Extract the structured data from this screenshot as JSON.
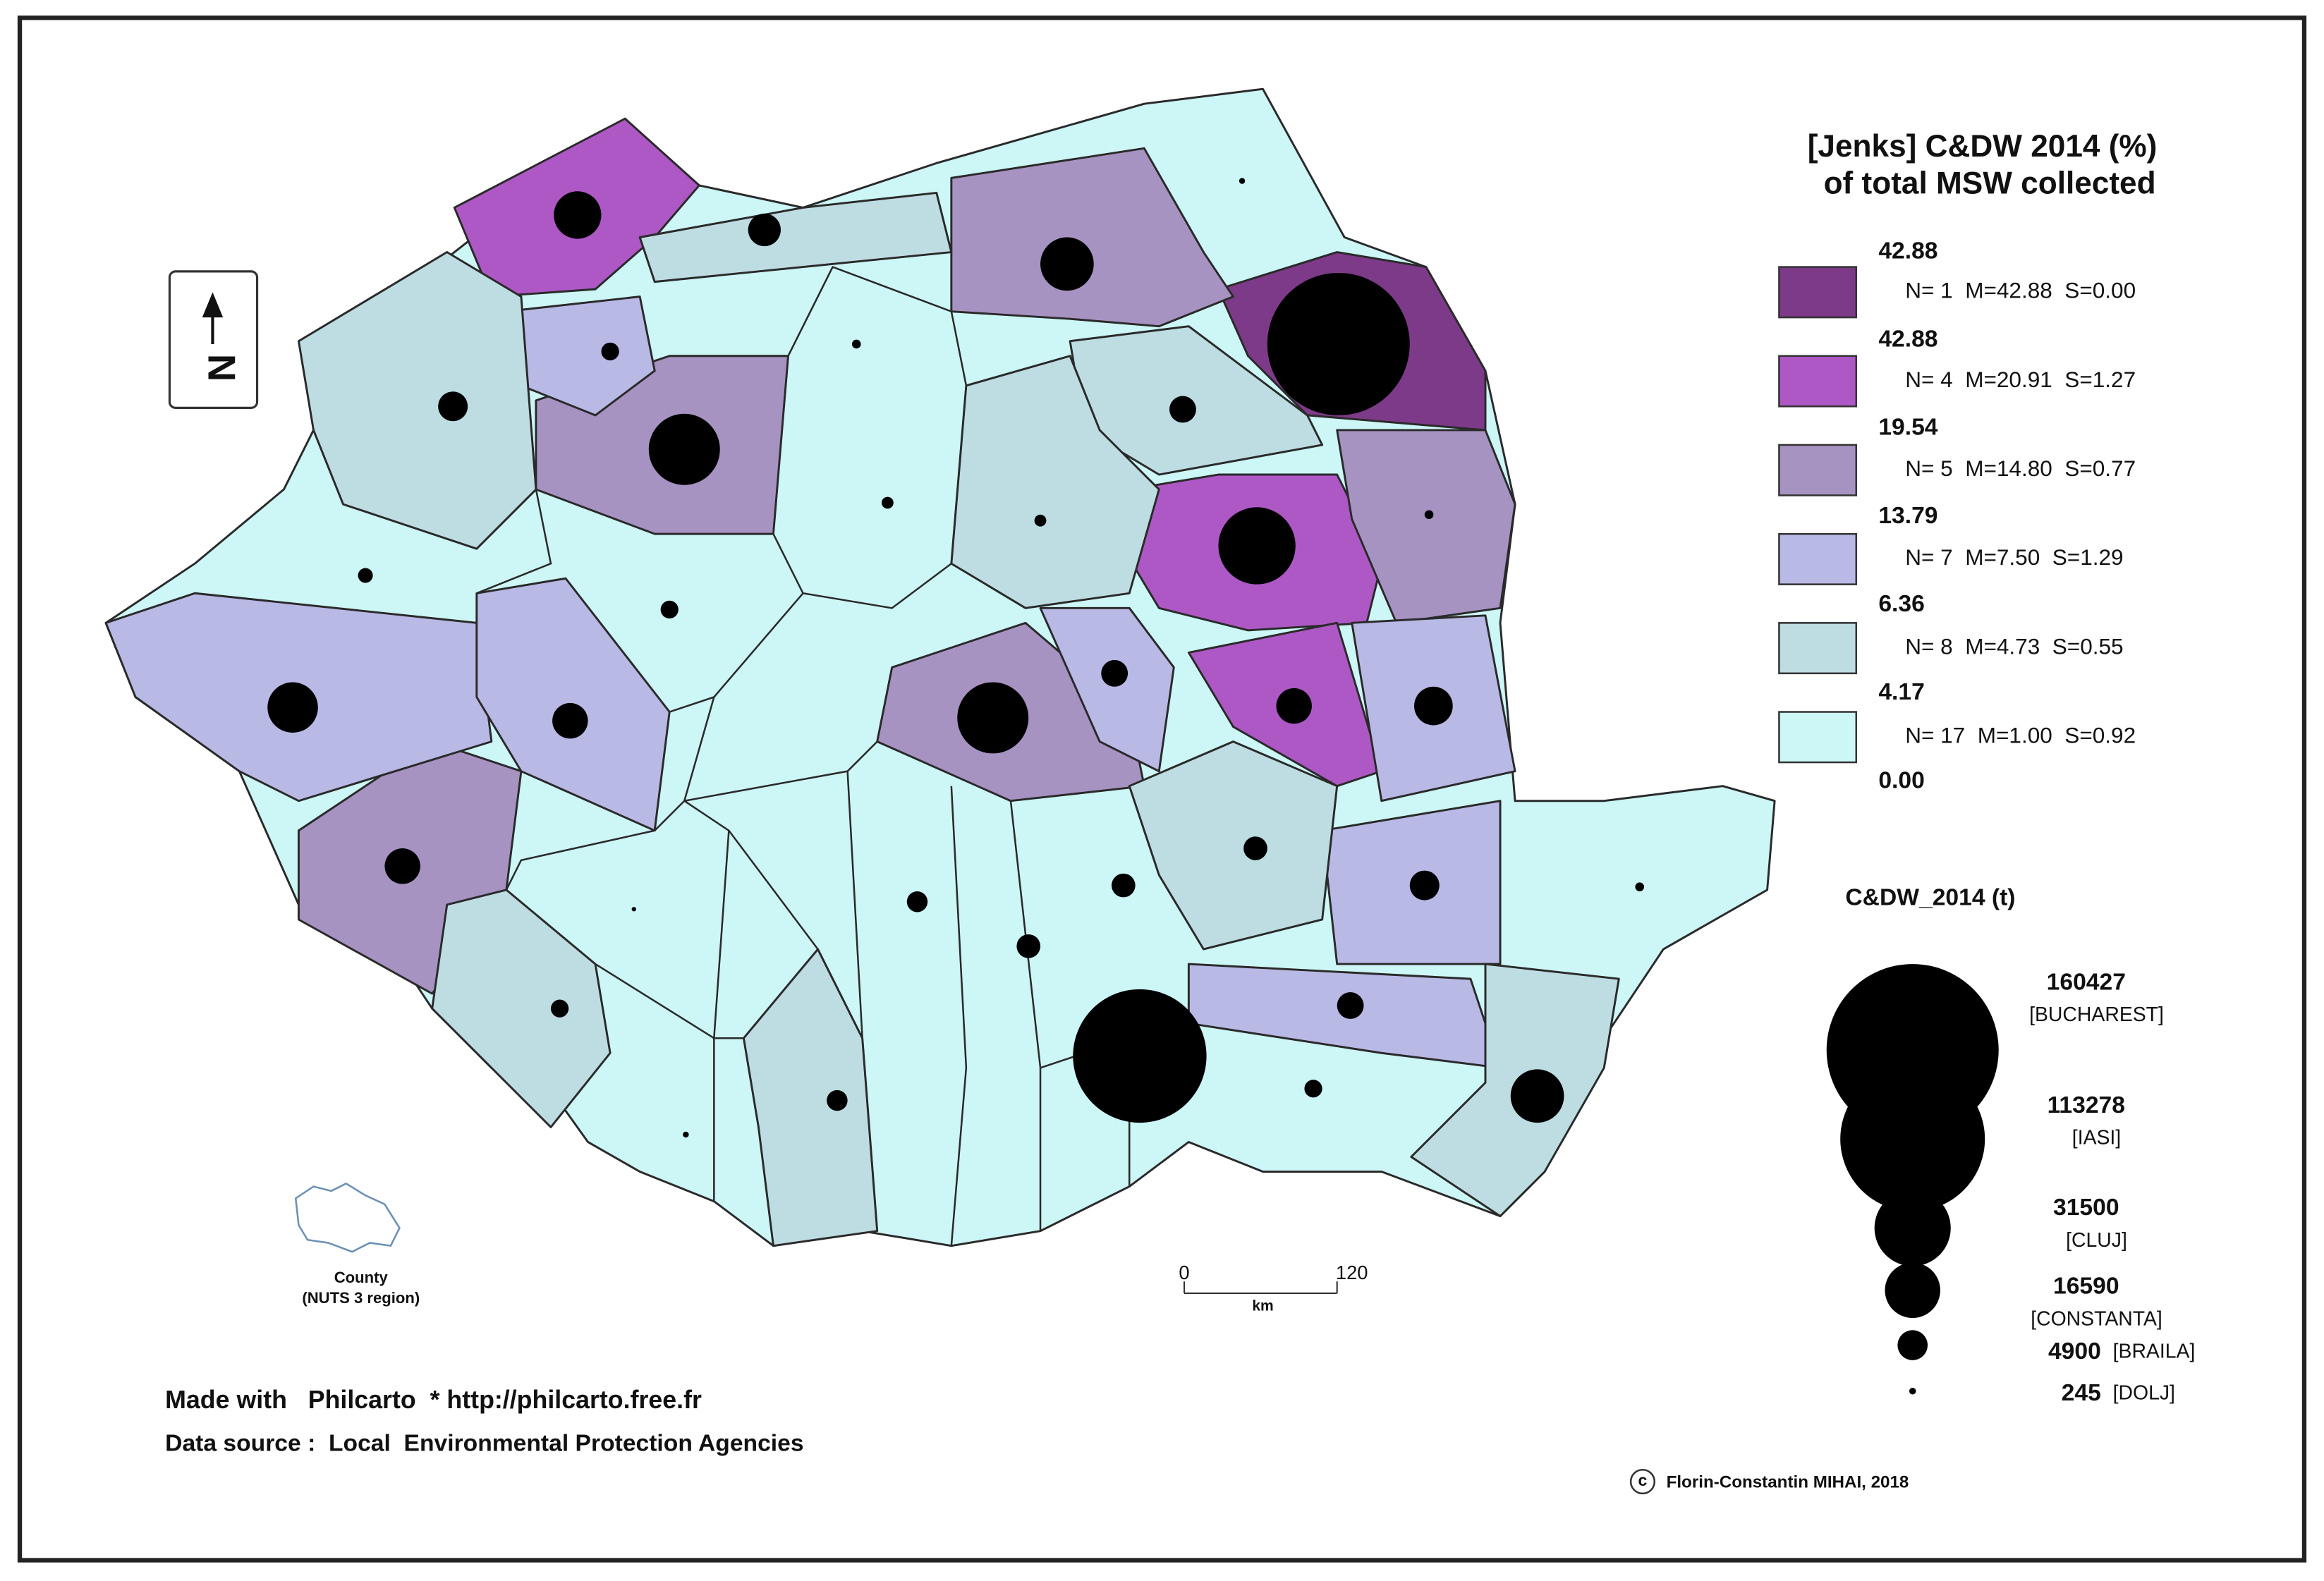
{
  "title_lines": [
    "[Jenks] C&DW 2014 (%)",
    "of total MSW collected"
  ],
  "legend": {
    "breaks": [
      "42.88",
      "42.88",
      "19.54",
      "13.79",
      "6.36",
      "4.17",
      "0.00"
    ],
    "classes": [
      {
        "color": "#7d3a88",
        "stats": "N= 1  M=42.88  S=0.00"
      },
      {
        "color": "#ae58c6",
        "stats": "N= 4  M=20.91  S=1.27"
      },
      {
        "color": "#a793c2",
        "stats": "N= 5  M=14.80  S=0.77"
      },
      {
        "color": "#b9b9e6",
        "stats": "N= 7  M=7.50  S=1.29"
      },
      {
        "color": "#bedde3",
        "stats": "N= 8  M=4.73  S=0.55"
      },
      {
        "color": "#cdf6f6",
        "stats": "N= 17  M=1.00  S=0.92"
      }
    ]
  },
  "size_legend": {
    "title": "C&DW_2014 (t)",
    "items": [
      {
        "value": 160427,
        "label": "[BUCHAREST]"
      },
      {
        "value": 113278,
        "label": "[IASI]"
      },
      {
        "value": 31500,
        "label": "[CLUJ]"
      },
      {
        "value": 16590,
        "label": "[CONSTANTA]"
      },
      {
        "value": 4900,
        "label": "[BRAILA]"
      },
      {
        "value": 245,
        "label": "[DOLJ]"
      }
    ]
  },
  "north": "N",
  "scale": {
    "start": "0",
    "end": "120",
    "unit": "km"
  },
  "inset": {
    "lines": [
      "County",
      "(NUTS 3 region)"
    ]
  },
  "credits": [
    "Made with   Philcarto  * http://philcarto.free.fr",
    "Data source :  Local  Environmental Protection Agencies"
  ],
  "copyright_mark": "c",
  "copyright": "Florin-Constantin MIHAI, 2018"
}
